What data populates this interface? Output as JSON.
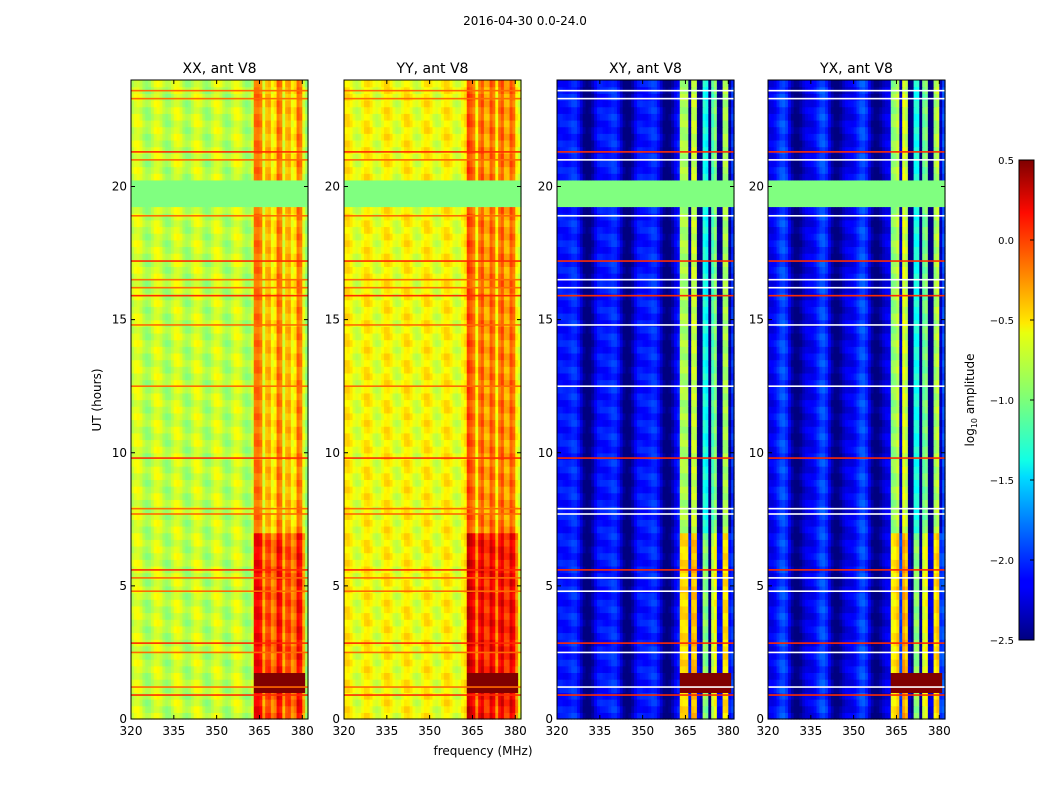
{
  "figure": {
    "suptitle": "2016-04-30 0.0-24.0",
    "xlabel": "frequency (MHz)",
    "ylabel": "UT (hours)",
    "colorbar_label_prefix": "log",
    "colorbar_label_sub": "10",
    "colorbar_label_suffix": " amplitude"
  },
  "chart_data": {
    "type": "heatmap",
    "colormap": "jet",
    "xlim": [
      320,
      382
    ],
    "ylim": [
      0,
      24
    ],
    "xticks": [
      320,
      335,
      350,
      365,
      380
    ],
    "xtick_labels": [
      "320",
      "335",
      "350",
      "365",
      "380"
    ],
    "yticks": [
      0,
      5,
      10,
      15,
      20
    ],
    "ytick_labels": [
      "0",
      "5",
      "10",
      "15",
      "20"
    ],
    "colorbar": {
      "vmin": -2.5,
      "vmax": 0.5,
      "ticks": [
        0.5,
        0.0,
        -0.5,
        -1.0,
        -1.5,
        -2.0,
        -2.5
      ],
      "tick_labels": [
        "0.5",
        "0.0",
        "−0.5",
        "−1.0",
        "−1.5",
        "−2.0",
        "−2.5"
      ]
    },
    "flagged_block_ut": [
      19.3,
      20.3
    ],
    "rfi_band_mhz": [
      363.5,
      381
    ],
    "strong_rfi_ut": [
      1.0,
      1.7
    ],
    "panels": [
      {
        "title": "XX, ant V8",
        "polarization": "XX",
        "base_level": -0.8
      },
      {
        "title": "YY, ant V8",
        "polarization": "YY",
        "base_level": -0.65
      },
      {
        "title": "XY, ant V8",
        "polarization": "XY",
        "base_level": -2.1
      },
      {
        "title": "YX, ant V8",
        "polarization": "YX",
        "base_level": -2.1
      }
    ]
  }
}
